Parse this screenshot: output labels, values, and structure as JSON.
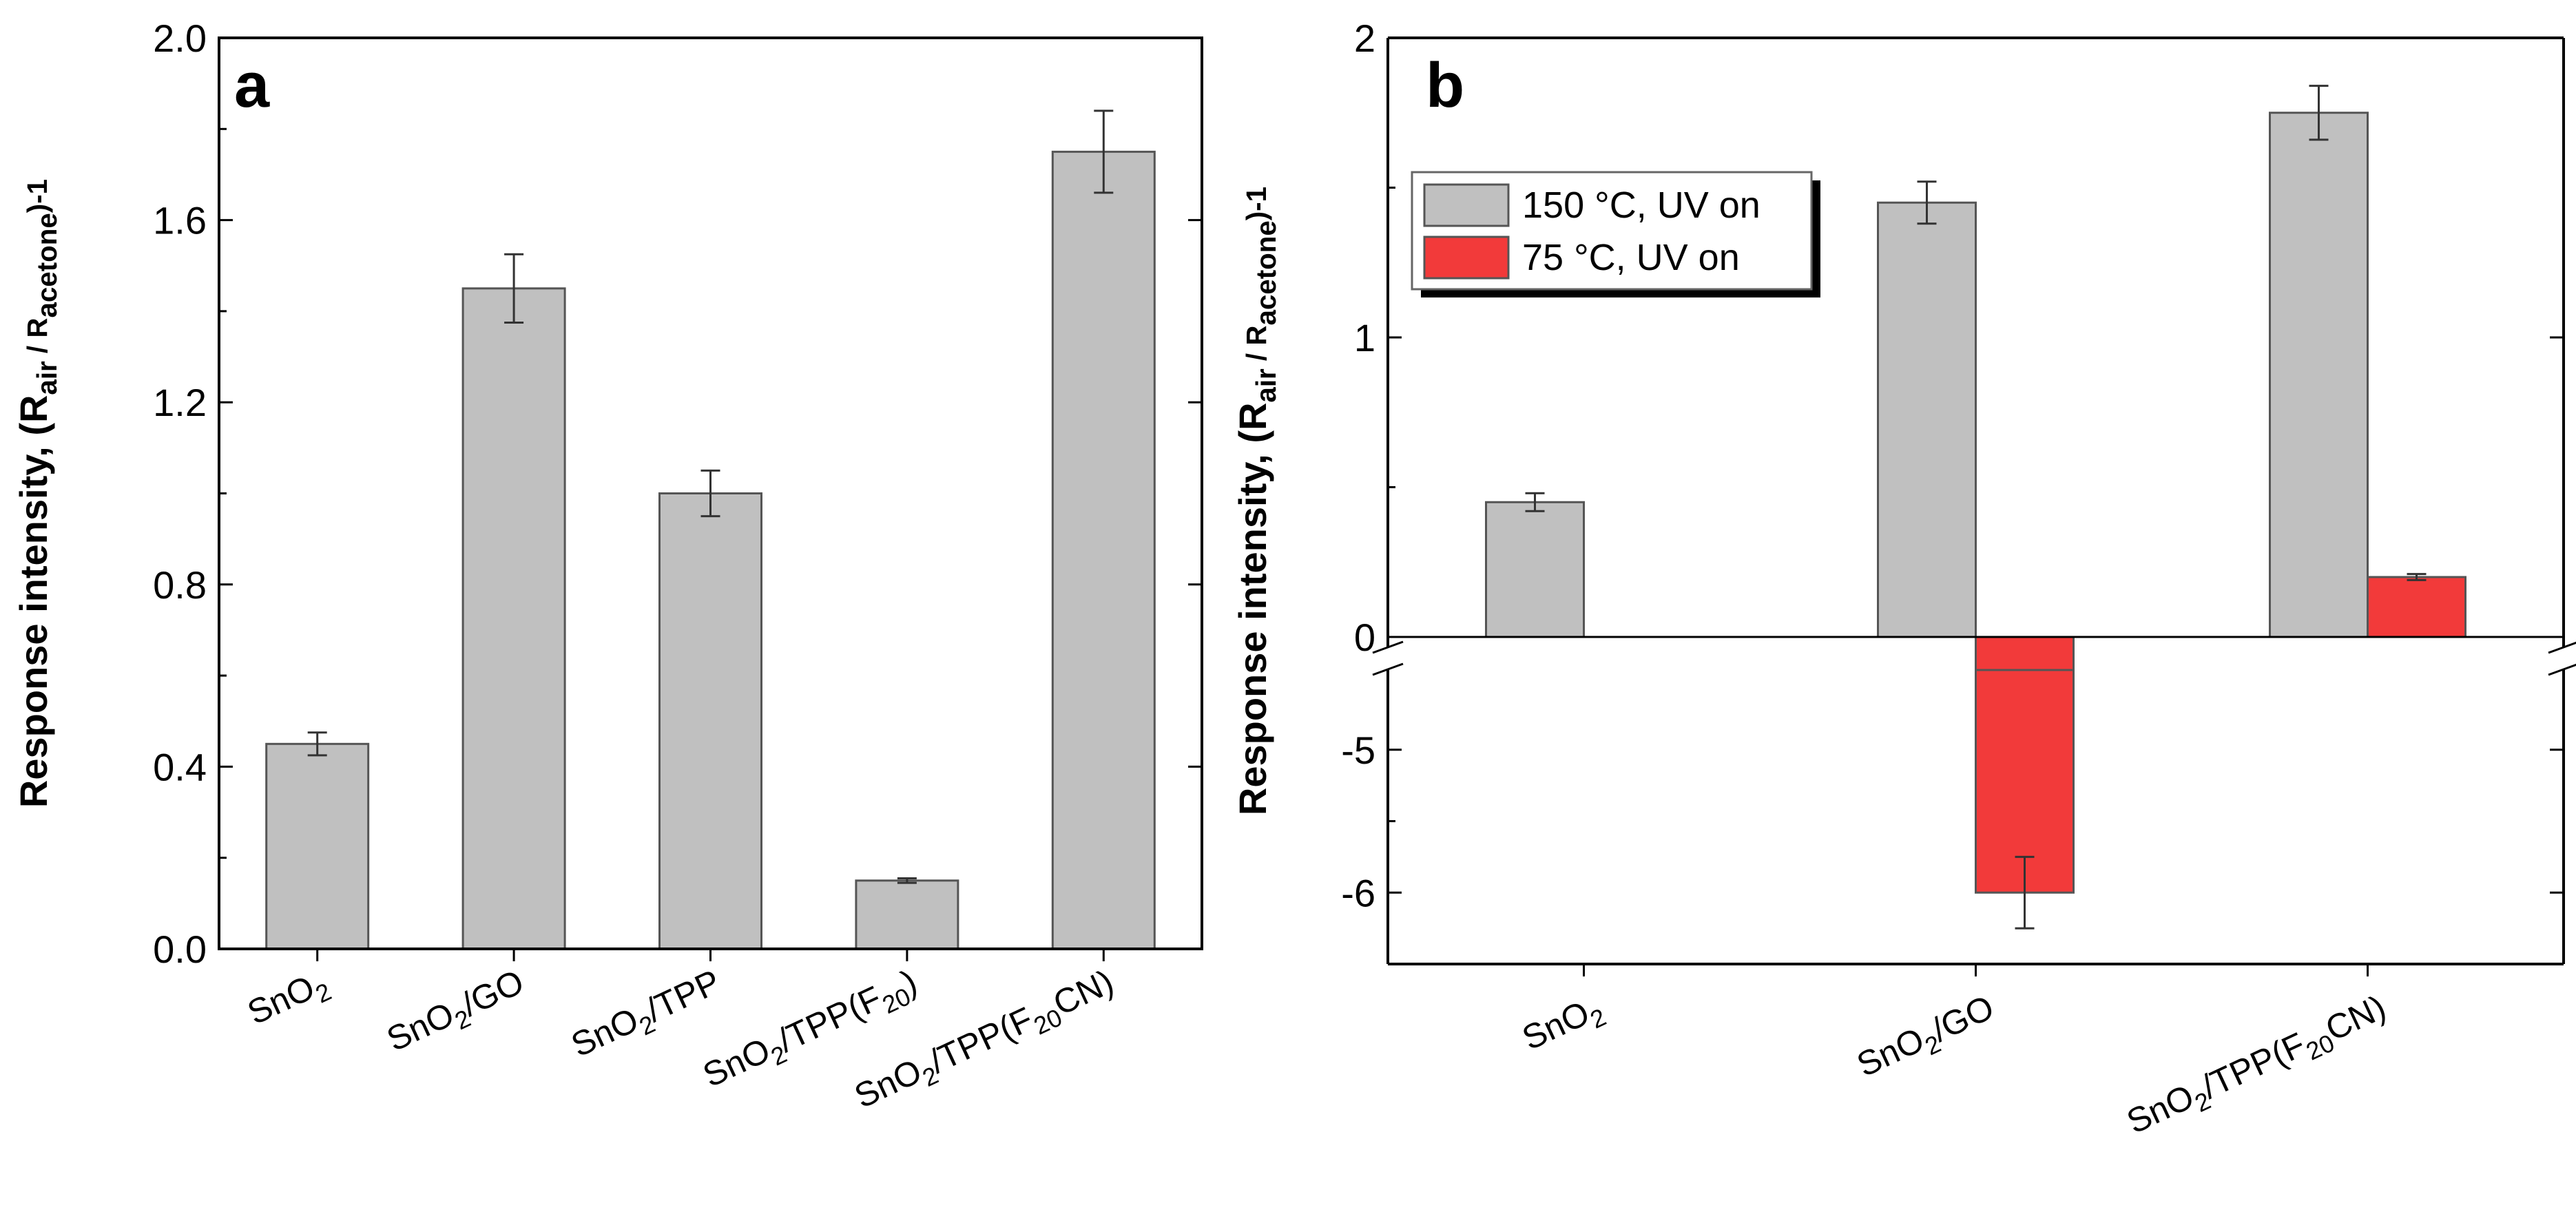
{
  "chart_data": [
    {
      "panel": "a",
      "type": "bar",
      "ylabel": "Response intensity, (R_air / R_acetone)-1",
      "ylabel_parts": {
        "main": "Response intensity, (R",
        "sub1": "air",
        "mid": " / R",
        "sub2": "acetone",
        "end": ")-1"
      },
      "ylim": [
        0.0,
        2.0
      ],
      "yticks": [
        "0.0",
        "0.4",
        "0.8",
        "1.2",
        "1.6",
        "2.0"
      ],
      "ytick_values": [
        0.0,
        0.4,
        0.8,
        1.2,
        1.6,
        2.0
      ],
      "categories": [
        {
          "base": "SnO",
          "sub": "2",
          "tail": "",
          "sub2": "",
          "tail2": ""
        },
        {
          "base": "SnO",
          "sub": "2",
          "tail": "/GO",
          "sub2": "",
          "tail2": ""
        },
        {
          "base": "SnO",
          "sub": "2",
          "tail": "/TPP",
          "sub2": "",
          "tail2": ""
        },
        {
          "base": "SnO",
          "sub": "2",
          "tail": "/TPP(F",
          "sub2": "20",
          "tail2": ")"
        },
        {
          "base": "SnO",
          "sub": "2",
          "tail": "/TPP(F",
          "sub2": "20",
          "tail2": "CN)"
        }
      ],
      "values": [
        0.45,
        1.45,
        1.0,
        0.15,
        1.75
      ],
      "errors": [
        0.025,
        0.075,
        0.05,
        0.005,
        0.09
      ],
      "bar_color": "#c0c0c0"
    },
    {
      "panel": "b",
      "type": "bar",
      "ylabel": "Response intensity, (R_air / R_acetone)-1",
      "ylabel_parts": {
        "main": "Response intensity, (R",
        "sub1": "air",
        "mid": " / R",
        "sub2": "acetone",
        "end": ")-1"
      },
      "axis_break": true,
      "upper_ylim": [
        0,
        2
      ],
      "lower_ylim": [
        -6.5,
        -4.5
      ],
      "yticks_upper": [
        "0",
        "1",
        "2"
      ],
      "ytick_values_upper": [
        0,
        1,
        2
      ],
      "yticks_lower": [
        "-5",
        "-6"
      ],
      "ytick_values_lower": [
        -5,
        -6
      ],
      "categories": [
        {
          "base": "SnO",
          "sub": "2",
          "tail": "",
          "sub2": "",
          "tail2": ""
        },
        {
          "base": "SnO",
          "sub": "2",
          "tail": "/GO",
          "sub2": "",
          "tail2": ""
        },
        {
          "base": "SnO",
          "sub": "2",
          "tail": "/TPP(F",
          "sub2": "20",
          "tail2": "CN)"
        }
      ],
      "series": [
        {
          "name": "150 °C, UV on",
          "color": "#c0c0c0",
          "values": [
            0.45,
            1.45,
            1.75
          ],
          "errors": [
            0.03,
            0.07,
            0.09
          ]
        },
        {
          "name": "75 °C, UV on",
          "color": "#f23a3a",
          "values": [
            null,
            -6.0,
            0.2
          ],
          "errors": [
            null,
            0.25,
            0.01
          ]
        }
      ],
      "legend": "top-left"
    }
  ],
  "labels": {
    "panel_a": "a",
    "panel_b": "b"
  }
}
